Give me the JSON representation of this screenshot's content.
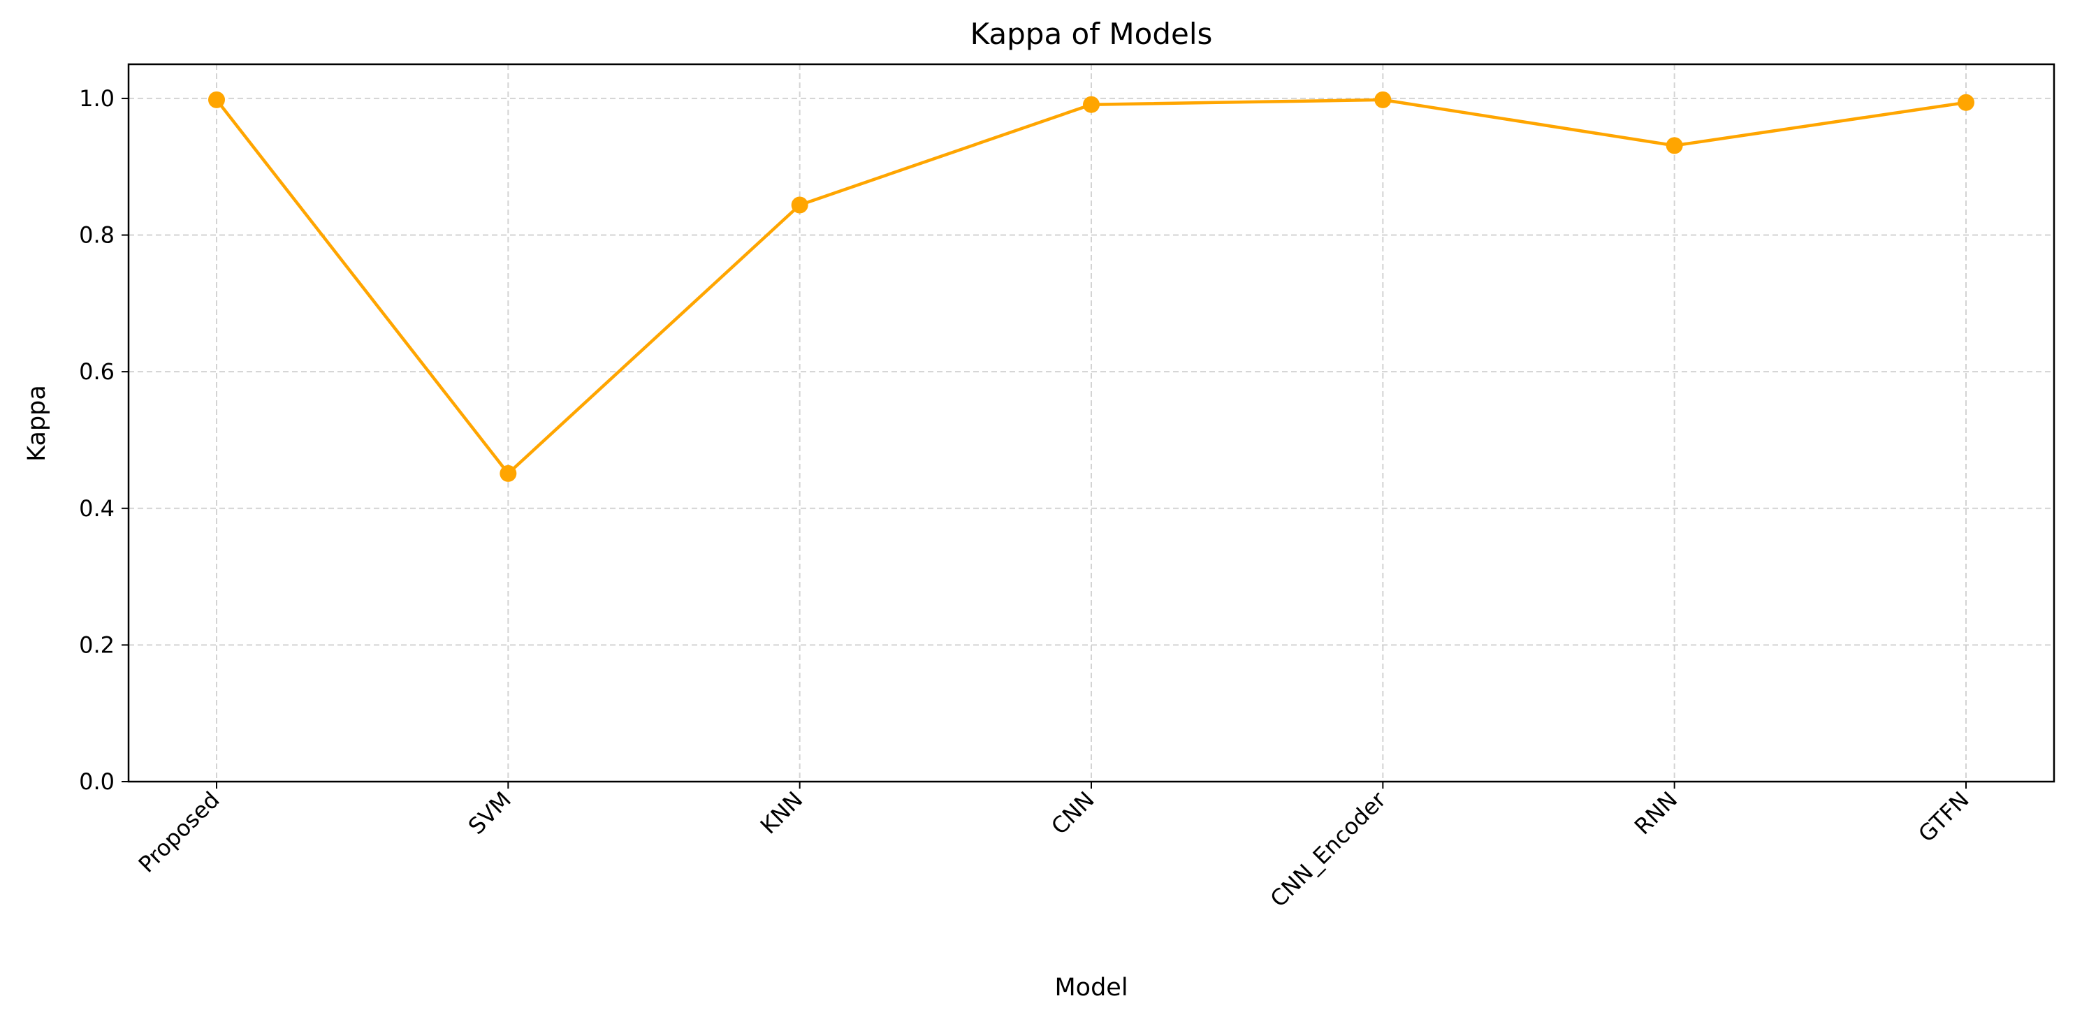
{
  "chart_data": {
    "type": "line",
    "title": "Kappa of Models",
    "xlabel": "Model",
    "ylabel": "Kappa",
    "categories": [
      "Proposed",
      "SVM",
      "KNN",
      "CNN",
      "CNN_Encoder",
      "RNN",
      "GTFN"
    ],
    "series": [
      {
        "values": [
          0.998,
          0.451,
          0.844,
          0.991,
          0.998,
          0.931,
          0.994
        ],
        "color": "#FFA500",
        "marker": "circle"
      }
    ],
    "ylim": [
      0,
      1.05
    ],
    "yticks": [
      0.0,
      0.2,
      0.4,
      0.6,
      0.8,
      1.0
    ],
    "ytick_labels": [
      "0.0",
      "0.2",
      "0.4",
      "0.6",
      "0.8",
      "1.0"
    ],
    "grid": true,
    "grid_style": "dashed",
    "xtick_rotation": 45
  }
}
